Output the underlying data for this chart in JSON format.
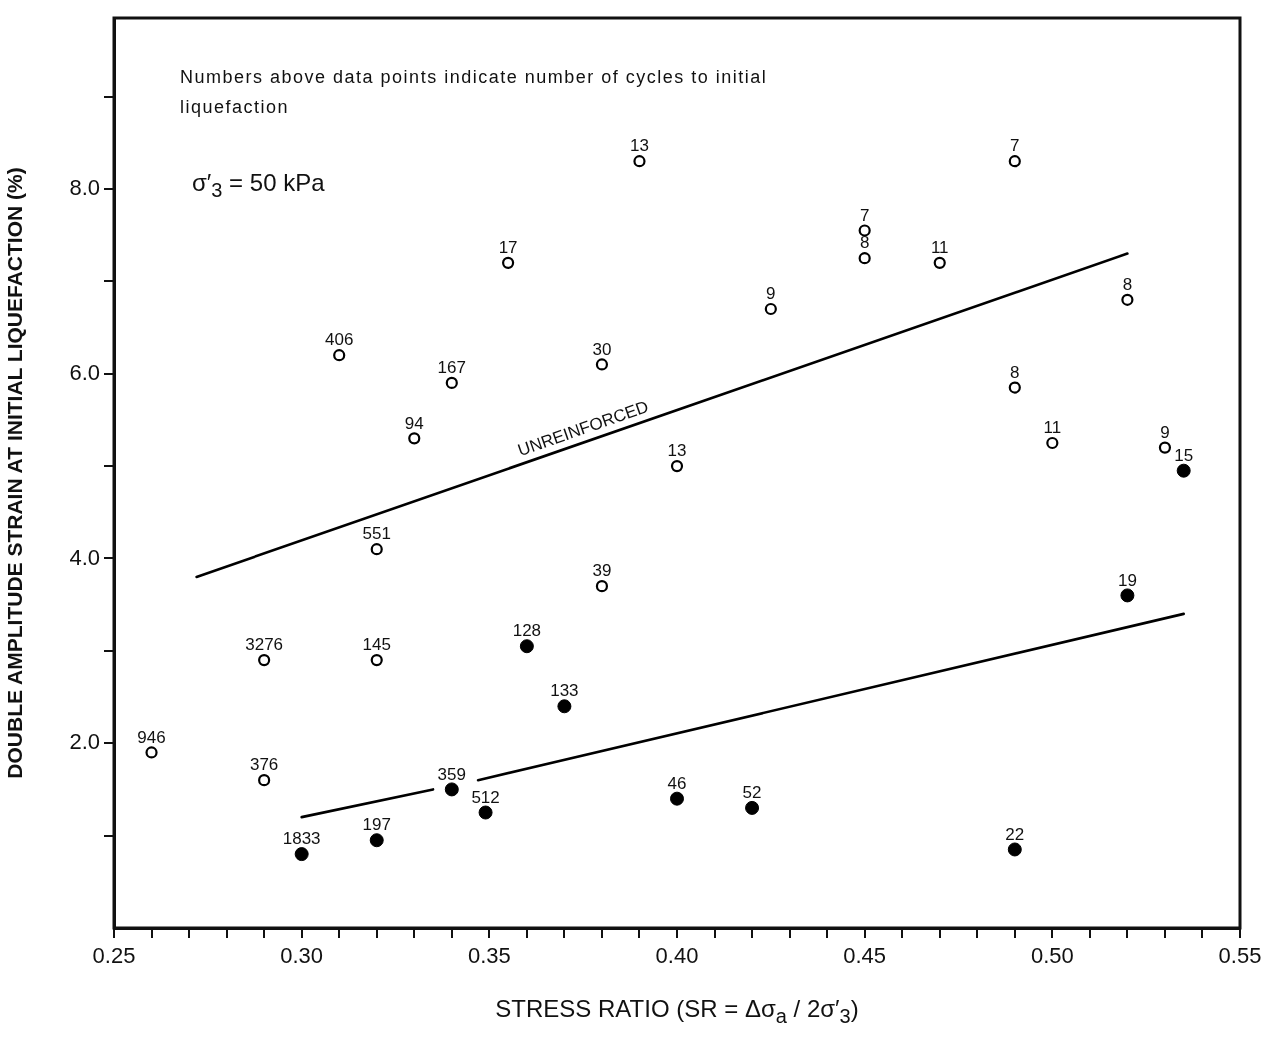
{
  "chart_data": {
    "type": "scatter",
    "xlabel": "STRESS RATIO (SR = Δσ$_{a}$ / 2σ′$_{3}$)",
    "ylabel": "DOUBLE AMPLITUDE STRAIN AT INITIAL LIQUEFACTION (%)",
    "annotations": [
      "Numbers above data points indicate number of cycles to initial liquefaction",
      "σ′$_{3}$ = 50 kPa",
      {
        "text": "946",
        "x": 0.26,
        "y": 1.9
      },
      {
        "text": "3276",
        "x": 0.29,
        "y": 2.9
      },
      {
        "text": "376",
        "x": 0.29,
        "y": 1.6
      },
      {
        "text": "145",
        "x": 0.32,
        "y": 2.9
      },
      {
        "text": "551",
        "x": 0.32,
        "y": 4.1
      },
      {
        "text": "406",
        "x": 0.31,
        "y": 6.2
      },
      {
        "text": "94",
        "x": 0.33,
        "y": 5.3
      },
      {
        "text": "167",
        "x": 0.34,
        "y": 5.9
      },
      {
        "text": "17",
        "x": 0.355,
        "y": 7.2
      },
      {
        "text": "13",
        "x": 0.39,
        "y": 8.3
      },
      {
        "text": "30",
        "x": 0.38,
        "y": 6.1
      },
      {
        "text": "39",
        "x": 0.38,
        "y": 3.7
      },
      {
        "text": "13",
        "x": 0.4,
        "y": 5.0
      },
      {
        "text": "9",
        "x": 0.425,
        "y": 6.7
      },
      {
        "text": "7",
        "x": 0.45,
        "y": 7.55
      },
      {
        "text": "8",
        "x": 0.45,
        "y": 7.25
      },
      {
        "text": "11",
        "x": 0.47,
        "y": 7.2
      },
      {
        "text": "7",
        "x": 0.49,
        "y": 8.3
      },
      {
        "text": "8",
        "x": 0.52,
        "y": 6.8
      },
      {
        "text": "8",
        "x": 0.49,
        "y": 5.85
      },
      {
        "text": "11",
        "x": 0.5,
        "y": 5.25
      },
      {
        "text": "9",
        "x": 0.53,
        "y": 5.2
      },
      {
        "text": "15",
        "x": 0.535,
        "y": 4.95
      },
      {
        "text": "19",
        "x": 0.52,
        "y": 3.6
      },
      {
        "text": "22",
        "x": 0.49,
        "y": 0.85
      },
      {
        "text": "46",
        "x": 0.4,
        "y": 1.4
      },
      {
        "text": "52",
        "x": 0.42,
        "y": 1.3
      },
      {
        "text": "128",
        "x": 0.36,
        "y": 3.05
      },
      {
        "text": "133",
        "x": 0.37,
        "y": 2.4
      },
      {
        "text": "359",
        "x": 0.34,
        "y": 1.5
      },
      {
        "text": "512",
        "x": 0.349,
        "y": 1.25
      },
      {
        "text": "197",
        "x": 0.32,
        "y": 0.95
      },
      {
        "text": "1833",
        "x": 0.3,
        "y": 0.8
      }
    ],
    "xlim": [
      0.25,
      0.55
    ],
    "xticks": [
      0.25,
      {
        "value": 0.26,
        "label": null
      },
      {
        "value": 0.27,
        "label": null
      },
      {
        "value": 0.28,
        "label": null
      },
      {
        "value": 0.29,
        "label": null
      },
      {
        "value": 0.3,
        "label": "0.30"
      },
      {
        "value": 0.31,
        "label": null
      },
      {
        "value": 0.32,
        "label": null
      },
      {
        "value": 0.33,
        "label": null
      },
      {
        "value": 0.34,
        "label": null
      },
      0.35,
      {
        "value": 0.36,
        "label": null
      },
      {
        "value": 0.37,
        "label": null
      },
      {
        "value": 0.38,
        "label": null
      },
      {
        "value": 0.39,
        "label": null
      },
      {
        "value": 0.4,
        "label": "0.40"
      },
      {
        "value": 0.41,
        "label": null
      },
      {
        "value": 0.42,
        "label": null
      },
      {
        "value": 0.43,
        "label": null
      },
      {
        "value": 0.44,
        "label": null
      },
      0.45,
      {
        "value": 0.46,
        "label": null
      },
      {
        "value": 0.47,
        "label": null
      },
      {
        "value": 0.48,
        "label": null
      },
      {
        "value": 0.49,
        "label": null
      },
      {
        "value": 0.5,
        "label": "0.50"
      },
      {
        "value": 0.51,
        "label": null
      },
      {
        "value": 0.52,
        "label": null
      },
      {
        "value": 0.53,
        "label": null
      },
      {
        "value": 0.54,
        "label": null
      },
      0.55
    ],
    "ylim": [
      0,
      9.85
    ],
    "yticks": [
      {
        "value": 1,
        "label": null
      },
      {
        "value": 2,
        "label": "2.0"
      },
      {
        "value": 3,
        "label": null
      },
      {
        "value": 4,
        "label": "4.0"
      },
      {
        "value": 5,
        "label": null
      },
      {
        "value": 6,
        "label": "6.0"
      },
      {
        "value": 7,
        "label": null
      },
      {
        "value": 8,
        "label": "8.0"
      },
      {
        "value": 9,
        "label": null
      }
    ],
    "grid": false,
    "legend": false,
    "series": [
      {
        "marker": "circle",
        "color": "#000000",
        "x": [
          0.26,
          0.29,
          0.29,
          0.32,
          0.32,
          0.31,
          0.33,
          0.34,
          0.355,
          0.39,
          0.38,
          0.38,
          0.4,
          0.425,
          0.45,
          0.45,
          0.47,
          0.49,
          0.52,
          0.49,
          0.5,
          0.53
        ],
        "values": [
          1.9,
          2.9,
          1.6,
          2.9,
          4.1,
          6.2,
          5.3,
          5.9,
          7.2,
          8.3,
          6.1,
          3.7,
          5.0,
          6.7,
          7.55,
          7.25,
          7.2,
          8.3,
          6.8,
          5.85,
          5.25,
          5.2
        ]
      },
      {
        "marker": "circle",
        "color": "#000000",
        "x": [
          0.535,
          0.52,
          0.49,
          0.4,
          0.42,
          0.36,
          0.37,
          0.34,
          0.349,
          0.32,
          0.3
        ],
        "values": [
          4.95,
          3.6,
          0.85,
          1.4,
          1.3,
          3.05,
          2.4,
          1.5,
          1.25,
          0.95,
          0.8
        ]
      },
      {
        "type": "line",
        "marker": "none",
        "name": "UNREINFORCED",
        "color": "#000000",
        "x": [
          0.272,
          0.52
        ],
        "values": [
          3.8,
          7.3
        ]
      },
      {
        "type": "line",
        "marker": "none",
        "color": "#000000",
        "x": [
          0.3,
          0.335,
          0.341,
          0.347,
          0.535
        ],
        "values": [
          1.2,
          1.5,
          null,
          1.6,
          3.4
        ]
      }
    ]
  }
}
